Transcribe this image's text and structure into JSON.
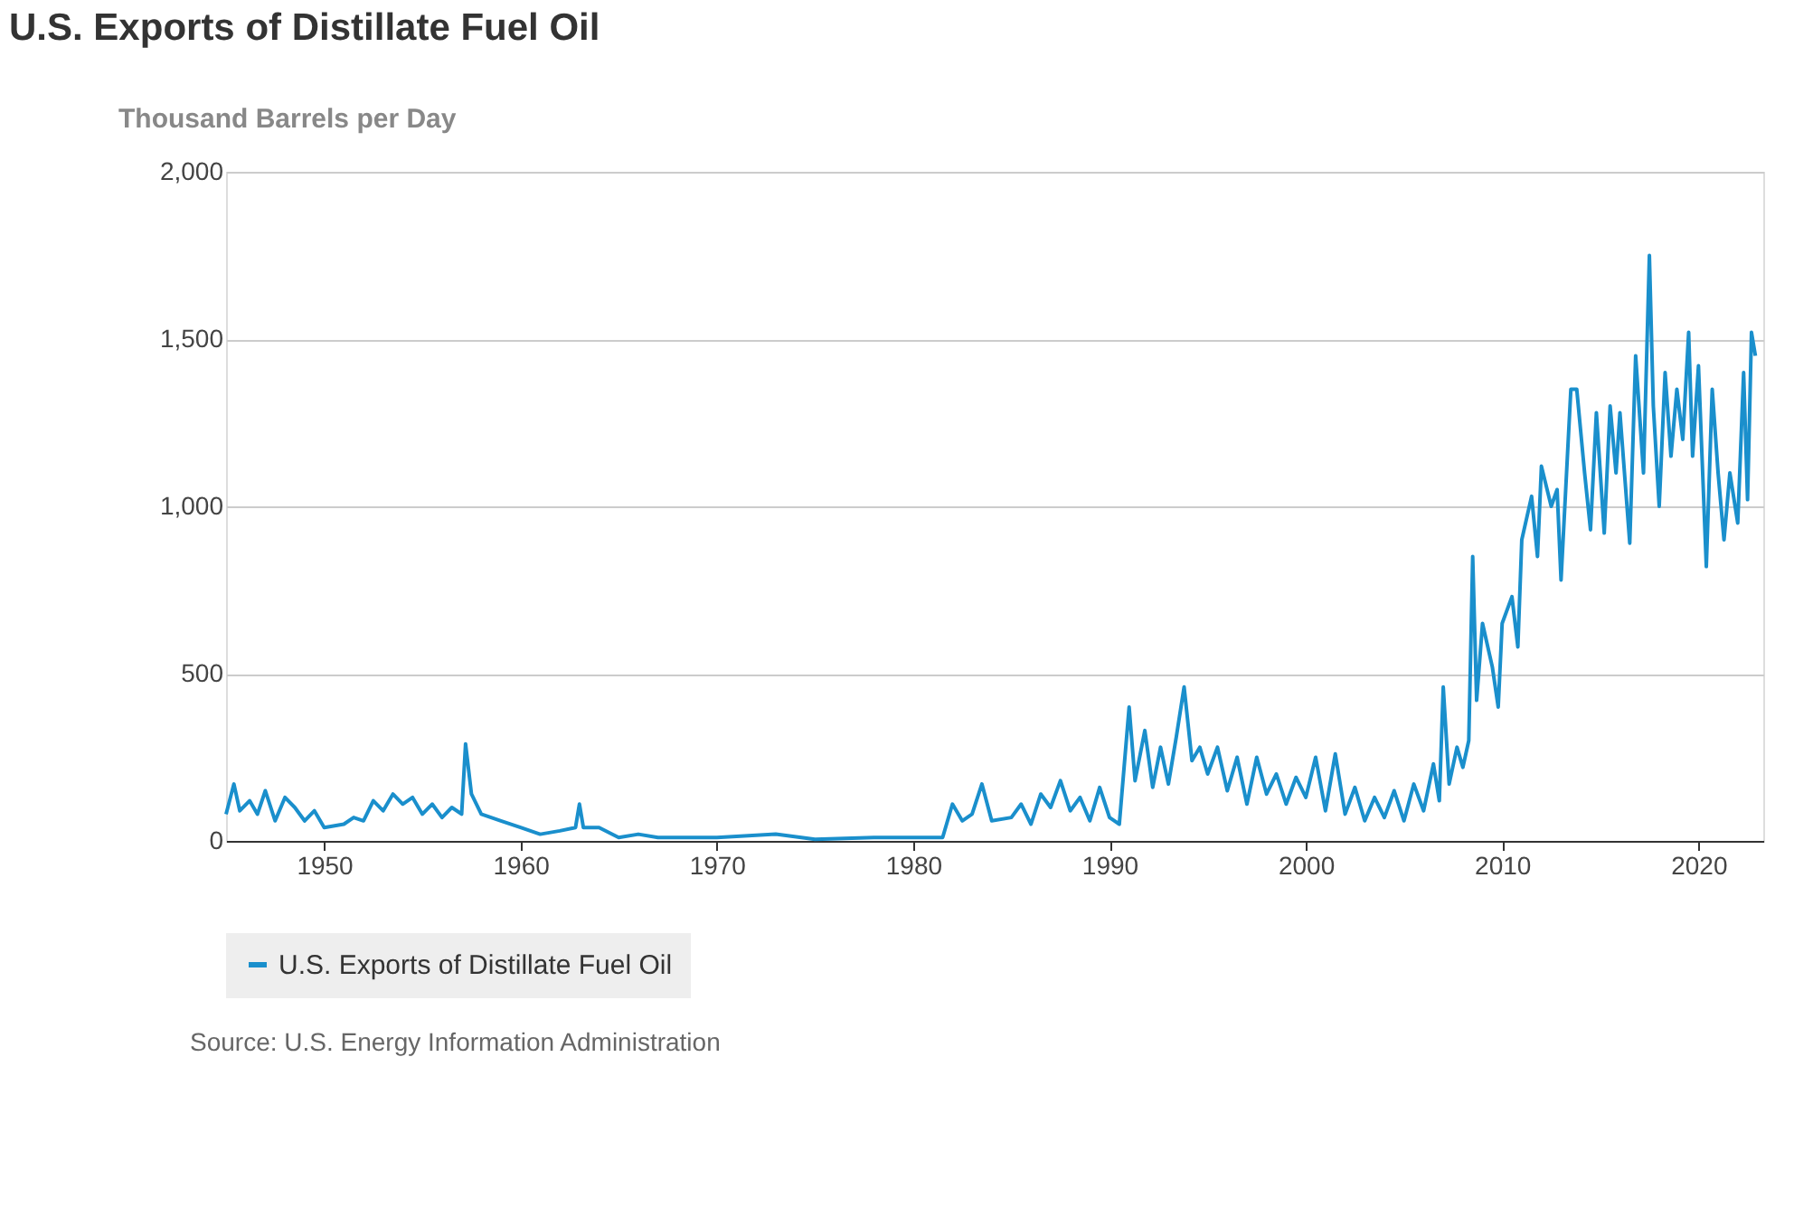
{
  "chart_data": {
    "type": "line",
    "title": "U.S. Exports of Distillate Fuel Oil",
    "ylabel": "Thousand Barrels per Day",
    "x": [
      1945.0,
      1945.4,
      1945.7,
      1946.2,
      1946.6,
      1947,
      1947.5,
      1948,
      1948.5,
      1949,
      1949.5,
      1950,
      1951,
      1951.5,
      1952,
      1952.5,
      1953,
      1953.5,
      1954,
      1954.5,
      1955,
      1955.5,
      1956,
      1956.5,
      1957.0,
      1957.2,
      1957.5,
      1958,
      1959,
      1960,
      1961,
      1962,
      1962.8,
      1963.0,
      1963.2,
      1964,
      1965,
      1966,
      1967,
      1970,
      1973,
      1975,
      1978,
      1981.5,
      1982,
      1982.5,
      1983,
      1983.5,
      1984,
      1985,
      1985.5,
      1986,
      1986.5,
      1987,
      1987.5,
      1988,
      1988.5,
      1989,
      1989.5,
      1990,
      1990.5,
      1991,
      1991.3,
      1991.8,
      1992.2,
      1992.6,
      1993,
      1993.4,
      1993.8,
      1994.2,
      1994.6,
      1995,
      1995.5,
      1996,
      1996.5,
      1997,
      1997.5,
      1998,
      1998.5,
      1999,
      1999.5,
      2000,
      2000.5,
      2001,
      2001.5,
      2002,
      2002.5,
      2003,
      2003.5,
      2004,
      2004.5,
      2005,
      2005.5,
      2006,
      2006.5,
      2006.8,
      2007,
      2007.3,
      2007.7,
      2008,
      2008.3,
      2008.5,
      2008.7,
      2009,
      2009.5,
      2009.8,
      2010,
      2010.5,
      2010.8,
      2011,
      2011.5,
      2011.8,
      2012,
      2012.5,
      2012.8,
      2013,
      2013.5,
      2013.8,
      2014.2,
      2014.5,
      2014.8,
      2015.2,
      2015.5,
      2015.8,
      2016,
      2016.5,
      2016.8,
      2017.2,
      2017.5,
      2017.7,
      2018,
      2018.3,
      2018.6,
      2018.9,
      2019.2,
      2019.5,
      2019.7,
      2020,
      2020.4,
      2020.7,
      2021,
      2021.3,
      2021.6,
      2022,
      2022.3,
      2022.5,
      2022.7,
      2022.9
    ],
    "series": [
      {
        "name": "U.S. Exports of Distillate Fuel Oil",
        "color": "#1a8fcc",
        "values": [
          80,
          170,
          90,
          120,
          80,
          150,
          60,
          130,
          100,
          60,
          90,
          40,
          50,
          70,
          60,
          120,
          90,
          140,
          110,
          130,
          80,
          110,
          70,
          100,
          80,
          290,
          140,
          80,
          60,
          40,
          20,
          30,
          40,
          110,
          40,
          40,
          10,
          20,
          10,
          10,
          20,
          5,
          10,
          10,
          110,
          60,
          80,
          170,
          60,
          70,
          110,
          50,
          140,
          100,
          180,
          90,
          130,
          60,
          160,
          70,
          50,
          400,
          180,
          330,
          160,
          280,
          170,
          310,
          460,
          240,
          280,
          200,
          280,
          150,
          250,
          110,
          250,
          140,
          200,
          110,
          190,
          130,
          250,
          90,
          260,
          80,
          160,
          60,
          130,
          70,
          150,
          60,
          170,
          90,
          230,
          120,
          460,
          170,
          280,
          220,
          300,
          850,
          420,
          650,
          520,
          400,
          650,
          730,
          580,
          900,
          1030,
          850,
          1120,
          1000,
          1050,
          780,
          1350,
          1350,
          1100,
          930,
          1280,
          920,
          1300,
          1100,
          1280,
          890,
          1450,
          1100,
          1750,
          1300,
          1000,
          1400,
          1150,
          1350,
          1200,
          1520,
          1150,
          1420,
          820,
          1350,
          1100,
          900,
          1100,
          950,
          1400,
          1020,
          1520,
          1450
        ]
      }
    ],
    "xlim": [
      1945,
      2023.3
    ],
    "xticks": [
      1950,
      1960,
      1970,
      1980,
      1990,
      2000,
      2010,
      2020
    ],
    "ylim": [
      0,
      2000
    ],
    "yticks": [
      0,
      500,
      {
        "value": 1000,
        "label": "1,000"
      },
      {
        "value": 1500,
        "label": "1,500"
      },
      {
        "value": 2000,
        "label": "2,000"
      }
    ],
    "line_style": "solid",
    "grid": "y",
    "legend": "bottom",
    "annotations": [
      "Source: U.S. Energy Information Administration"
    ]
  }
}
